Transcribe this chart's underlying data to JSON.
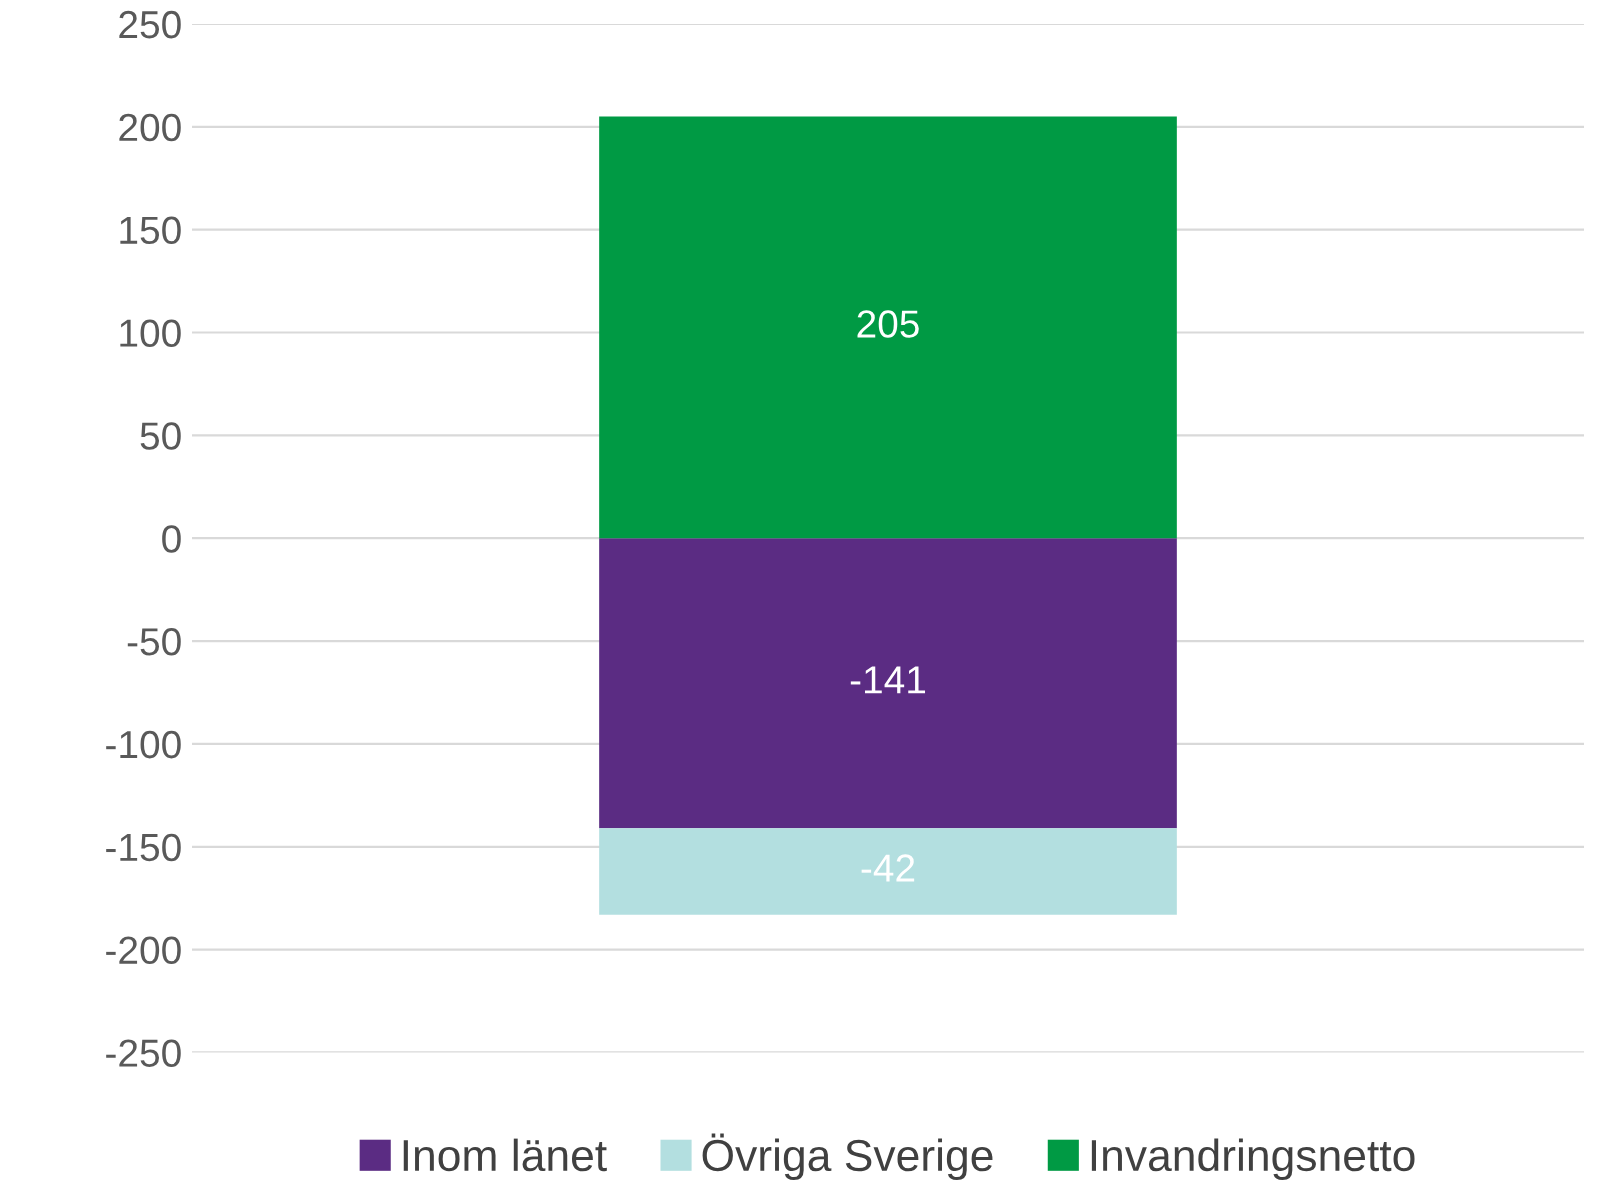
{
  "chart_data": {
    "type": "bar",
    "stacked": true,
    "categories": [
      null
    ],
    "series": [
      {
        "name": "Inom länet",
        "color": "#5b2c83",
        "values": [
          -141
        ]
      },
      {
        "name": "Övriga Sverige",
        "color": "#b3dfe0",
        "values": [
          -42
        ]
      },
      {
        "name": "Invandringsnetto",
        "color": "#009a44",
        "values": [
          205
        ]
      }
    ],
    "ylim": [
      -250,
      250
    ],
    "yticks": [
      -250,
      -200,
      -150,
      -100,
      -50,
      0,
      50,
      100,
      150,
      200,
      250
    ],
    "grid": "y",
    "legend": "bottom",
    "data_labels": true
  }
}
